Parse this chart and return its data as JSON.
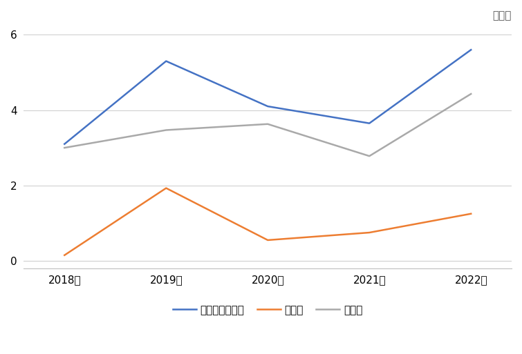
{
  "years": [
    "2018年",
    "2019年",
    "2020年",
    "2021年",
    "2022年"
  ],
  "total_trade": [
    3.1,
    5.3,
    4.1,
    3.65,
    5.6
  ],
  "imports": [
    0.15,
    1.93,
    0.55,
    0.75,
    1.25
  ],
  "exports": [
    3.0,
    3.47,
    3.63,
    2.78,
    4.43
  ],
  "total_color": "#4472C4",
  "import_color": "#ED7D31",
  "export_color": "#A9A9A9",
  "unit_label": "亿美元",
  "legend_labels": [
    "农产品贸易总额",
    "进口额",
    "出口额"
  ],
  "ylim": [
    -0.2,
    6.3
  ],
  "yticks": [
    0,
    2,
    4,
    6
  ],
  "background_color": "#FFFFFF",
  "grid_color": "#D0D0D0",
  "line_width": 1.8,
  "figsize": [
    7.55,
    5.13
  ],
  "dpi": 100
}
